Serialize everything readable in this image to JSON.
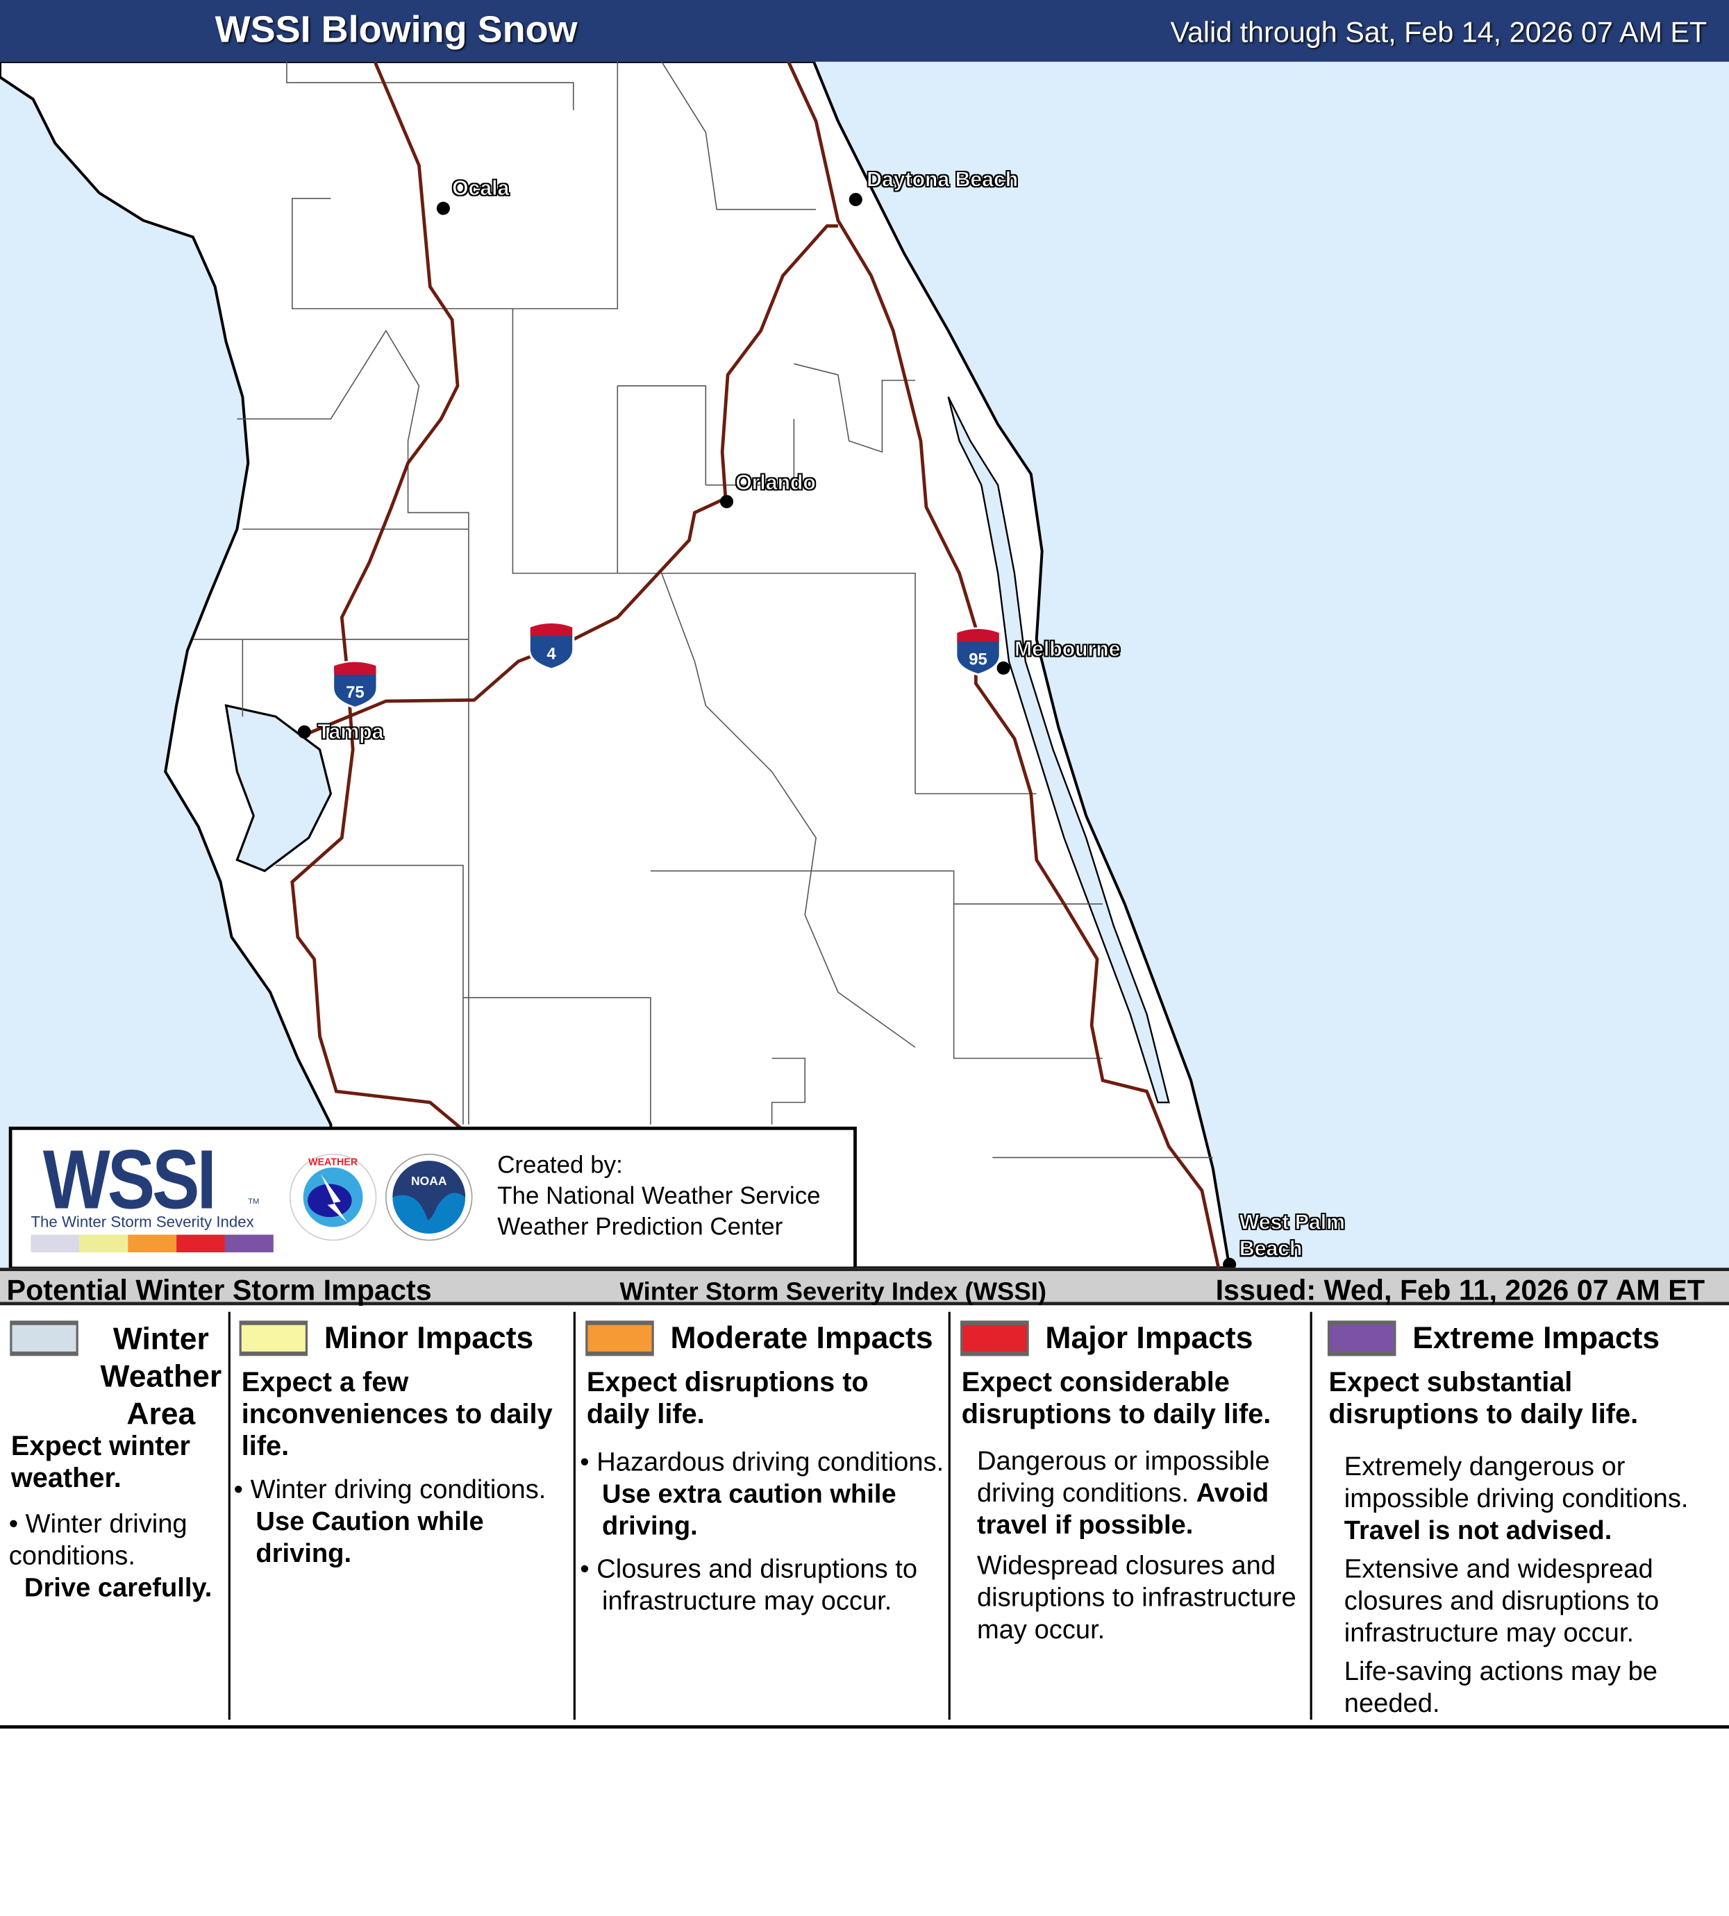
{
  "header": {
    "title": "WSSI Blowing Snow",
    "valid": "Valid through Sat, Feb 14, 2026 07 AM ET"
  },
  "map": {
    "ocean_color": "#dcedfb",
    "highway_color": "#6b1d0f",
    "cities": [
      "Ocala",
      "Daytona Beach",
      "Orlando",
      "Melbourne",
      "Tampa",
      "West Palm Beach"
    ],
    "interstates": [
      "75",
      "4",
      "95"
    ]
  },
  "logo": {
    "wssi": "WSSI",
    "tm": "TM",
    "subtitle": "The Winter Storm Severity Index",
    "created_by": "Created by:",
    "org1": "The National Weather Service",
    "org2": "Weather Prediction Center",
    "nws_text": "NATIONAL WEATHER SERVICE",
    "noaa_text": "NOAA",
    "bar_colors": [
      "#d9d9e8",
      "#eeee99",
      "#f59a35",
      "#e3222b",
      "#7b52a4"
    ]
  },
  "legend_bar": {
    "left": "Potential Winter Storm Impacts",
    "center": "Winter Storm Severity Index (WSSI)",
    "right": "Issued: Wed, Feb 11, 2026 07 AM ET"
  },
  "categories": [
    {
      "title": "Winter Weather Area",
      "color": "#d3dfe8",
      "headline": "Expect winter weather.",
      "bullet_a": "Winter driving conditions.",
      "bullet_b": "Drive carefully."
    },
    {
      "title": "Minor Impacts",
      "color": "#f8f5a3",
      "headline": "Expect a few inconveniences to daily life.",
      "bullet_a": "Winter driving conditions.",
      "bullet_b": "Use Caution while driving."
    },
    {
      "title": "Moderate Impacts",
      "color": "#f59a35",
      "headline": "Expect disruptions to daily life.",
      "bullet_a": "Hazardous driving conditions.",
      "bullet_b": "Use extra caution while driving.",
      "bullet_c": "Closures and disruptions to infrastructure may occur."
    },
    {
      "title": "Major Impacts",
      "color": "#e3222b",
      "headline": "Expect considerable disruptions to daily life.",
      "para_a": "Dangerous or impossible driving conditions.",
      "para_b": "Avoid travel if possible.",
      "para_c": "Widespread closures and disruptions to infrastructure may occur."
    },
    {
      "title": "Extreme Impacts",
      "color": "#7b52a4",
      "headline": "Expect substantial disruptions to daily life.",
      "para_a": "Extremely dangerous or impossible driving conditions.",
      "para_b": "Travel is not advised.",
      "para_c": "Extensive and widespread closures and disruptions to infrastructure may occur.",
      "para_d": "Life-saving actions may be needed."
    }
  ]
}
